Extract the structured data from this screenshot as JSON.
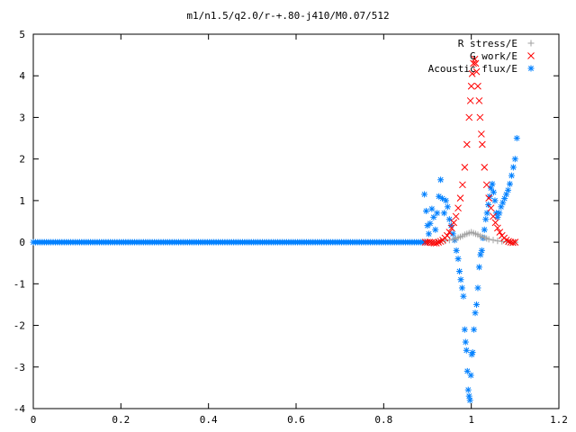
{
  "chart_data": {
    "type": "scatter",
    "title": "m1/n1.5/q2.0/r-+.80-j410/M0.07/512",
    "xlabel": "",
    "ylabel": "",
    "xlim": [
      0,
      1.2
    ],
    "ylim": [
      -4,
      5
    ],
    "xticks": [
      "0",
      "0.2",
      "0.4",
      "0.6",
      "0.8",
      "1",
      "1.2"
    ],
    "yticks": [
      "-4",
      "-3",
      "-2",
      "-1",
      "0",
      "1",
      "2",
      "3",
      "4",
      "5"
    ],
    "grid": false,
    "legend_position": "top-right",
    "series": [
      {
        "name": "R stress/E",
        "marker": "plus",
        "color": "#a0a0a0",
        "points": [
          [
            0.9,
            0.0
          ],
          [
            0.91,
            0.0
          ],
          [
            0.92,
            0.01
          ],
          [
            0.93,
            0.02
          ],
          [
            0.94,
            0.03
          ],
          [
            0.95,
            0.05
          ],
          [
            0.96,
            0.07
          ],
          [
            0.965,
            0.09
          ],
          [
            0.97,
            0.11
          ],
          [
            0.975,
            0.13
          ],
          [
            0.98,
            0.15
          ],
          [
            0.985,
            0.18
          ],
          [
            0.99,
            0.2
          ],
          [
            0.995,
            0.22
          ],
          [
            1.0,
            0.24
          ],
          [
            1.005,
            0.22
          ],
          [
            1.01,
            0.2
          ],
          [
            1.015,
            0.18
          ],
          [
            1.02,
            0.15
          ],
          [
            1.025,
            0.13
          ],
          [
            1.03,
            0.11
          ],
          [
            1.035,
            0.09
          ],
          [
            1.04,
            0.07
          ],
          [
            1.05,
            0.05
          ],
          [
            1.06,
            0.03
          ],
          [
            1.07,
            0.02
          ],
          [
            1.08,
            0.01
          ],
          [
            1.09,
            0.0
          ],
          [
            1.1,
            0.0
          ]
        ]
      },
      {
        "name": "G work/E",
        "marker": "cross",
        "color": "#ff0000",
        "points": [
          [
            0.895,
            0.0
          ],
          [
            0.9,
            0.0
          ],
          [
            0.905,
            0.0
          ],
          [
            0.91,
            -0.01
          ],
          [
            0.915,
            -0.02
          ],
          [
            0.92,
            -0.02
          ],
          [
            0.925,
            0.0
          ],
          [
            0.93,
            0.02
          ],
          [
            0.935,
            0.05
          ],
          [
            0.94,
            0.1
          ],
          [
            0.945,
            0.16
          ],
          [
            0.95,
            0.24
          ],
          [
            0.955,
            0.34
          ],
          [
            0.96,
            0.47
          ],
          [
            0.965,
            0.62
          ],
          [
            0.97,
            0.82
          ],
          [
            0.975,
            1.06
          ],
          [
            0.98,
            1.38
          ],
          [
            0.985,
            1.8
          ],
          [
            0.99,
            2.35
          ],
          [
            0.995,
            3.0
          ],
          [
            0.998,
            3.4
          ],
          [
            1.0,
            3.75
          ],
          [
            1.002,
            4.05
          ],
          [
            1.005,
            4.3
          ],
          [
            1.008,
            4.4
          ],
          [
            1.01,
            4.3
          ],
          [
            1.012,
            4.1
          ],
          [
            1.015,
            3.75
          ],
          [
            1.018,
            3.4
          ],
          [
            1.02,
            3.0
          ],
          [
            1.023,
            2.6
          ],
          [
            1.025,
            2.35
          ],
          [
            1.03,
            1.8
          ],
          [
            1.035,
            1.38
          ],
          [
            1.04,
            1.06
          ],
          [
            1.045,
            0.82
          ],
          [
            1.05,
            0.62
          ],
          [
            1.055,
            0.47
          ],
          [
            1.06,
            0.34
          ],
          [
            1.065,
            0.24
          ],
          [
            1.07,
            0.16
          ],
          [
            1.075,
            0.1
          ],
          [
            1.08,
            0.05
          ],
          [
            1.085,
            0.02
          ],
          [
            1.09,
            0.0
          ],
          [
            1.095,
            -0.01
          ],
          [
            1.1,
            0.0
          ]
        ]
      },
      {
        "name": "Acoustic flux/E",
        "marker": "star",
        "color": "#0080ff",
        "points": [
          [
            0.893,
            1.15
          ],
          [
            0.897,
            0.75
          ],
          [
            0.9,
            0.4
          ],
          [
            0.903,
            0.2
          ],
          [
            0.906,
            0.45
          ],
          [
            0.91,
            0.8
          ],
          [
            0.914,
            0.6
          ],
          [
            0.918,
            0.3
          ],
          [
            0.922,
            0.7
          ],
          [
            0.926,
            1.1
          ],
          [
            0.93,
            1.5
          ],
          [
            0.934,
            1.05
          ],
          [
            0.938,
            0.7
          ],
          [
            0.942,
            1.0
          ],
          [
            0.946,
            0.85
          ],
          [
            0.95,
            0.55
          ],
          [
            0.954,
            0.4
          ],
          [
            0.958,
            0.2
          ],
          [
            0.962,
            0.05
          ],
          [
            0.966,
            -0.2
          ],
          [
            0.97,
            -0.4
          ],
          [
            0.973,
            -0.7
          ],
          [
            0.976,
            -0.9
          ],
          [
            0.979,
            -1.1
          ],
          [
            0.982,
            -1.3
          ],
          [
            0.985,
            -2.1
          ],
          [
            0.987,
            -2.4
          ],
          [
            0.989,
            -2.6
          ],
          [
            0.991,
            -3.1
          ],
          [
            0.993,
            -3.55
          ],
          [
            0.995,
            -3.7
          ],
          [
            0.997,
            -3.8
          ],
          [
            0.999,
            -3.2
          ],
          [
            1.001,
            -2.7
          ],
          [
            1.003,
            -2.65
          ],
          [
            1.006,
            -2.1
          ],
          [
            1.009,
            -1.7
          ],
          [
            1.012,
            -1.5
          ],
          [
            1.015,
            -1.1
          ],
          [
            1.018,
            -0.6
          ],
          [
            1.021,
            -0.3
          ],
          [
            1.024,
            -0.2
          ],
          [
            1.027,
            0.1
          ],
          [
            1.03,
            0.3
          ],
          [
            1.033,
            0.55
          ],
          [
            1.036,
            0.7
          ],
          [
            1.039,
            0.9
          ],
          [
            1.042,
            1.1
          ],
          [
            1.045,
            1.3
          ],
          [
            1.048,
            1.4
          ],
          [
            1.051,
            1.2
          ],
          [
            1.054,
            1.0
          ],
          [
            1.057,
            0.7
          ],
          [
            1.06,
            0.6
          ],
          [
            1.064,
            0.7
          ],
          [
            1.068,
            0.85
          ],
          [
            1.072,
            0.95
          ],
          [
            1.076,
            1.05
          ],
          [
            1.08,
            1.15
          ],
          [
            1.084,
            1.25
          ],
          [
            1.088,
            1.4
          ],
          [
            1.092,
            1.6
          ],
          [
            1.096,
            1.8
          ],
          [
            1.1,
            2.0
          ],
          [
            1.104,
            2.5
          ]
        ],
        "baseline": {
          "x_start": 0,
          "x_end": 0.9,
          "y": 0,
          "count": 180
        }
      }
    ]
  }
}
